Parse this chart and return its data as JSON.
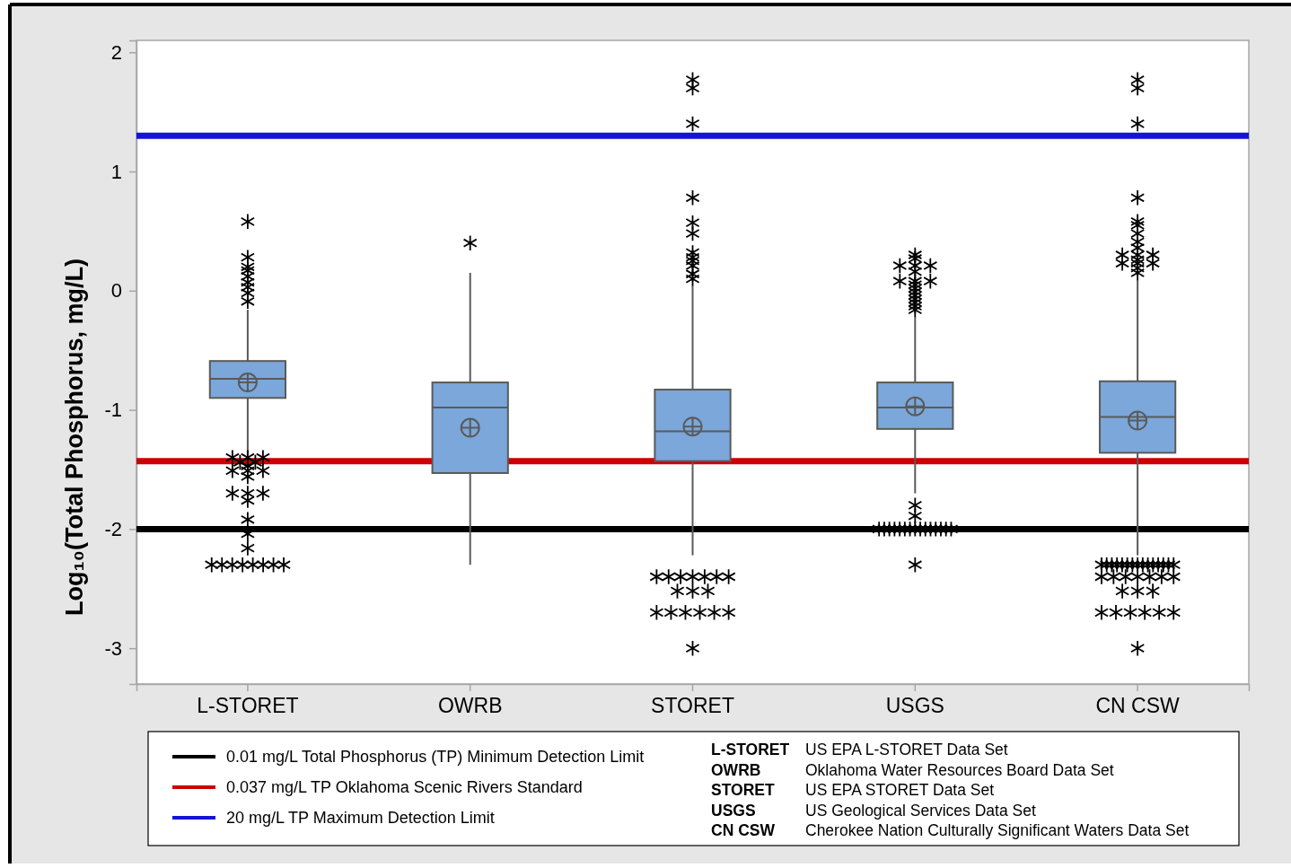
{
  "chart_data": {
    "type": "box",
    "categories": [
      "L-STORET",
      "OWRB",
      "STORET",
      "USGS",
      "CN CSW"
    ],
    "ylabel": "Log₁₀(Total Phosphorus, mg/L)",
    "ylim": [
      -3.3,
      2.1
    ],
    "yticks": [
      -3,
      -2,
      -1,
      0,
      1,
      2
    ],
    "color": "#7ba7da",
    "marker": "star",
    "legend": "bottom",
    "boxes": [
      {
        "low": -1.38,
        "q1": -0.9,
        "median": -0.74,
        "q3": -0.59,
        "high": -0.16,
        "mean": -0.77,
        "outliers": [
          0.58,
          0.28,
          0.2,
          0.17,
          0.12,
          0.07,
          0.03,
          -0.02,
          -0.09,
          -1.4,
          -1.4,
          -1.4,
          -1.44,
          -1.44,
          -1.47,
          -1.51,
          -1.51,
          -1.51,
          -1.56,
          -1.7,
          -1.7,
          -1.7,
          -1.76,
          -1.92,
          -2.04,
          -2.16,
          -2.3,
          -2.3,
          -2.3,
          -2.3,
          -2.3,
          -2.3,
          -2.3,
          -2.3
        ]
      },
      {
        "low": -2.3,
        "q1": -1.53,
        "median": -0.98,
        "q3": -0.77,
        "high": 0.15,
        "mean": -1.15,
        "outliers": [
          0.4
        ]
      },
      {
        "low": -2.22,
        "q1": -1.43,
        "median": -1.18,
        "q3": -0.83,
        "high": 0.04,
        "mean": -1.14,
        "outliers": [
          1.77,
          1.7,
          1.4,
          0.78,
          0.57,
          0.48,
          0.32,
          0.28,
          0.25,
          0.21,
          0.14,
          0.1,
          -2.4,
          -2.4,
          -2.4,
          -2.4,
          -2.4,
          -2.4,
          -2.4,
          -2.52,
          -2.52,
          -2.52,
          -2.7,
          -2.7,
          -2.7,
          -2.7,
          -2.7,
          -2.7,
          -3
        ]
      },
      {
        "low": -1.7,
        "q1": -1.16,
        "median": -0.98,
        "q3": -0.77,
        "high": -0.22,
        "mean": -0.97,
        "outliers": [
          0.3,
          0.27,
          0.21,
          0.21,
          0.21,
          0.16,
          0.08,
          0.08,
          0.08,
          0.05,
          0.02,
          -0.01,
          -0.04,
          -0.07,
          -0.1,
          -0.13,
          -0.16,
          -1.8,
          -1.89,
          -2,
          -2,
          -2,
          -2,
          -2,
          -2,
          -2,
          -2,
          -2,
          -2,
          -2,
          -2,
          -2,
          -2,
          -2,
          -2.3
        ]
      },
      {
        "low": -2.22,
        "q1": -1.36,
        "median": -1.06,
        "q3": -0.76,
        "high": 0.09,
        "mean": -1.09,
        "outliers": [
          1.77,
          1.7,
          1.4,
          0.78,
          0.58,
          0.55,
          0.48,
          0.41,
          0.36,
          0.3,
          0.3,
          0.3,
          0.26,
          0.23,
          0.23,
          0.23,
          0.19,
          0.15,
          -2.3,
          -2.3,
          -2.3,
          -2.3,
          -2.3,
          -2.3,
          -2.3,
          -2.3,
          -2.3,
          -2.3,
          -2.3,
          -2.3,
          -2.3,
          -2.3,
          -2.3,
          -2.4,
          -2.4,
          -2.4,
          -2.4,
          -2.4,
          -2.4,
          -2.4,
          -2.52,
          -2.52,
          -2.52,
          -2.7,
          -2.7,
          -2.7,
          -2.7,
          -2.7,
          -2.7,
          -3
        ]
      }
    ],
    "ref_lines": [
      {
        "axis": "y",
        "value": -2,
        "label": "0.01 mg/L Total Phosphorus (TP) Minimum Detection Limit",
        "color": "#000000"
      },
      {
        "axis": "y",
        "value": -1.43,
        "label": "0.037 mg/L TP Oklahoma Scenic Rivers Standard",
        "color": "#cc0000"
      },
      {
        "axis": "y",
        "value": 1.3,
        "label": "20 mg/L TP Maximum Detection Limit",
        "color": "#1414d8"
      }
    ],
    "annotations": [
      "L-STORET",
      "US EPA L-STORET Data Set",
      "OWRB",
      "Oklahoma Water Resources Board Data Set",
      "STORET",
      "US EPA STORET Data Set",
      "USGS",
      "US Geological Services Data Set",
      "CN CSW",
      "Cherokee Nation Culturally Significant Waters Data Set"
    ]
  }
}
